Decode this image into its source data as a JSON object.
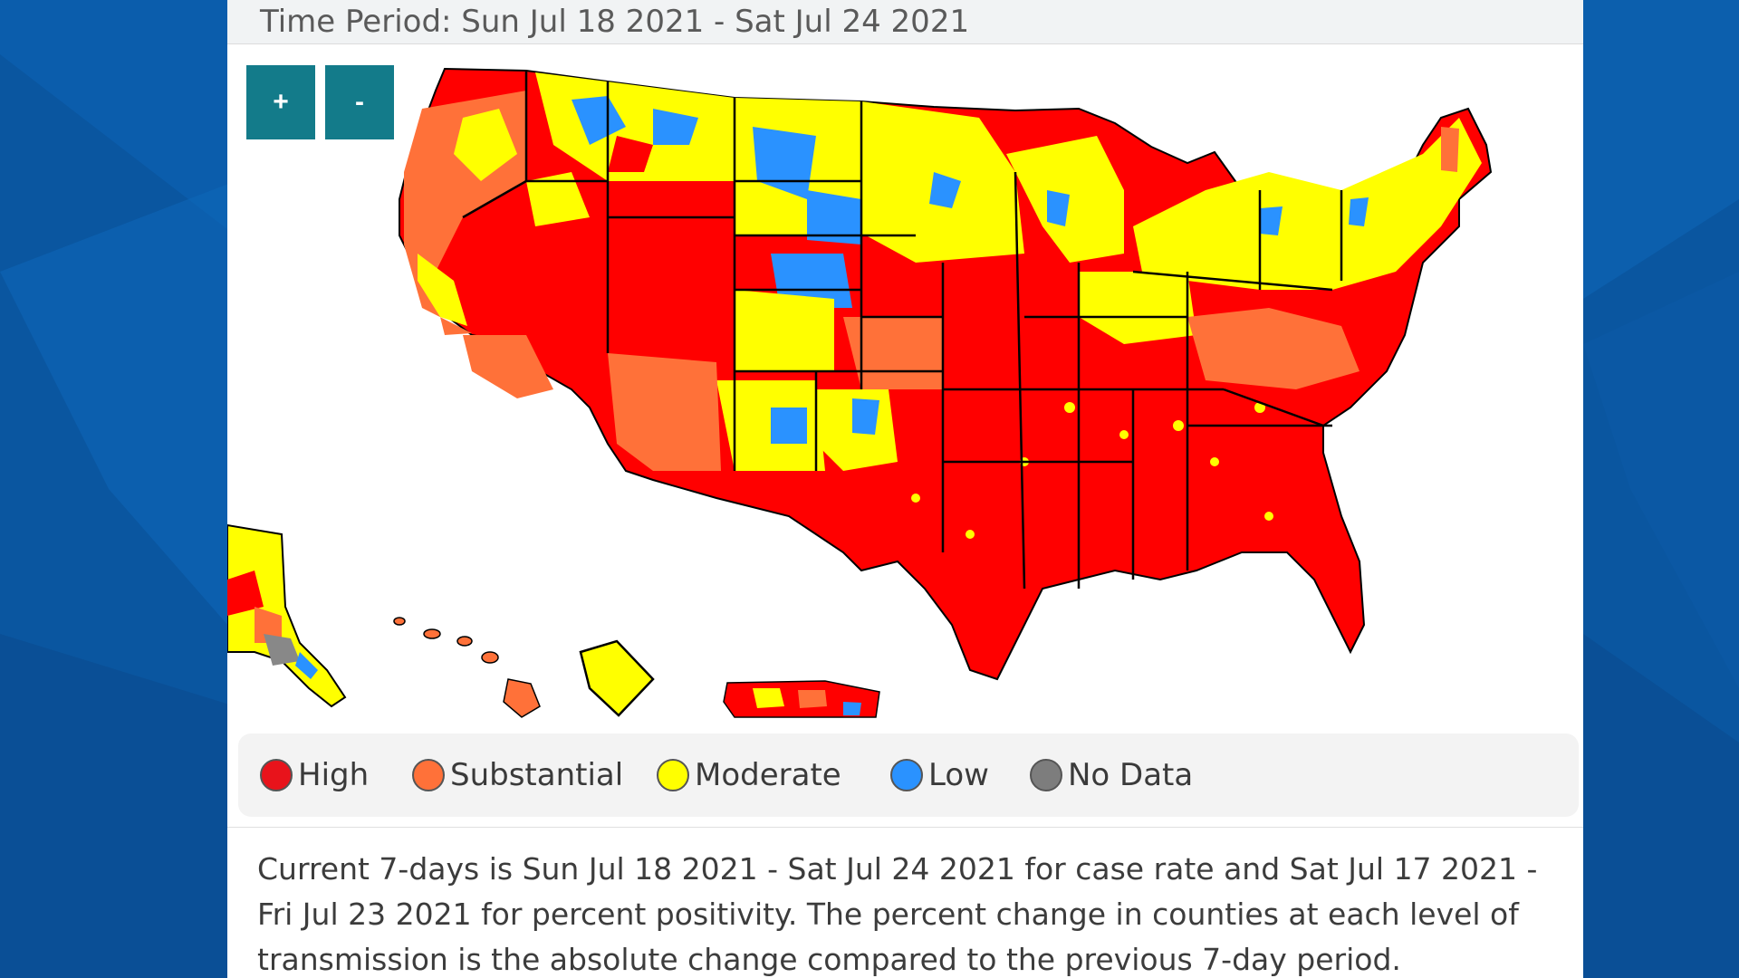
{
  "time_period": "Time Period: Sun Jul 18 2021 - Sat Jul 24 2021",
  "zoom": {
    "in_label": "+",
    "out_label": "-"
  },
  "map": {
    "level_colors": {
      "high": "#ff0000",
      "substantial": "#ff7139",
      "moderate": "#ffff00",
      "low": "#2a92ff",
      "no_data": "#888888"
    }
  },
  "legend": {
    "items": [
      {
        "label": "High",
        "color": "#e8131b"
      },
      {
        "label": "Substantial",
        "color": "#ff7139"
      },
      {
        "label": "Moderate",
        "color": "#ffff00"
      },
      {
        "label": "Low",
        "color": "#2a92ff"
      },
      {
        "label": "No Data",
        "color": "#7d7d7d"
      }
    ]
  },
  "footnote": "Current 7-days is Sun Jul 18 2021 - Sat Jul 24 2021 for case rate and Sat Jul 17 2021 - Fri Jul 23 2021 for percent positivity. The percent change in counties at each level of transmission is the absolute change compared to the previous 7-day period.",
  "background": {
    "color_dark": "#0a4f96",
    "color_light": "#1a72c2"
  }
}
